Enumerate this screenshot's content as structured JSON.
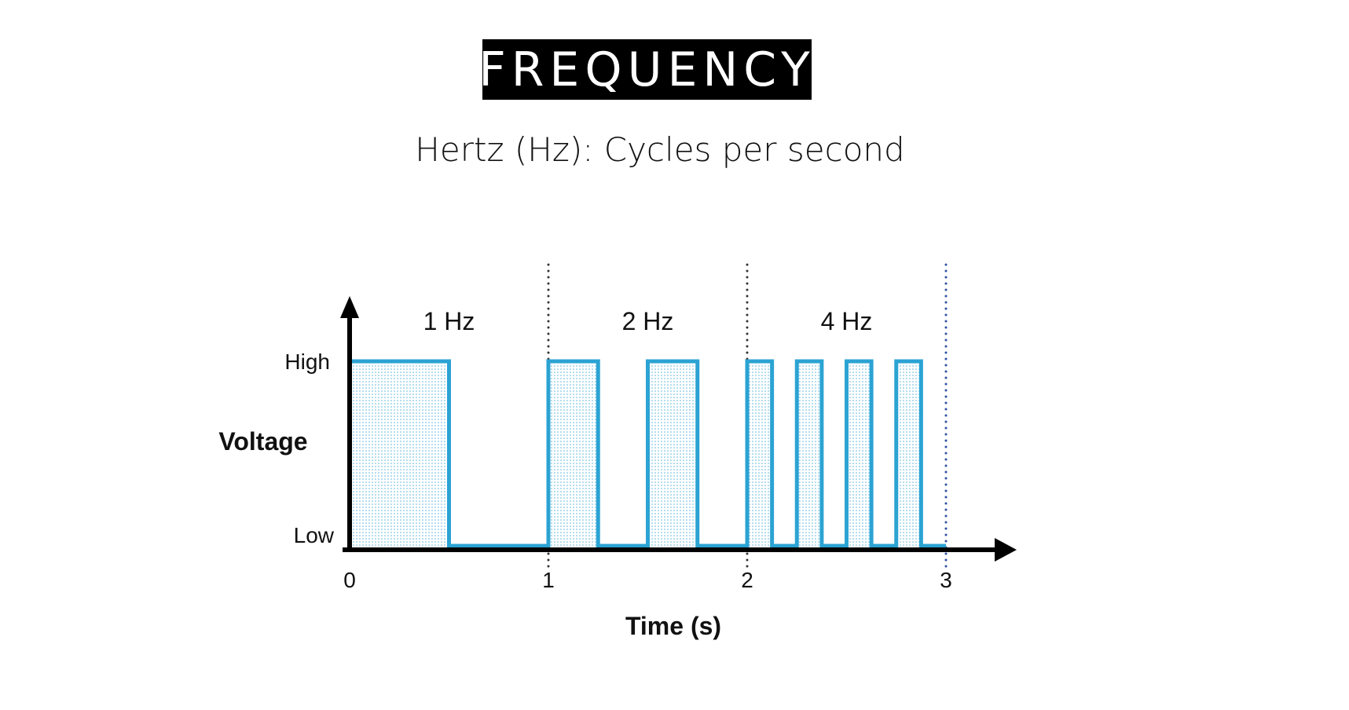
{
  "title": "FREQUENCY",
  "subtitle": "Hertz (Hz): Cycles per second",
  "chart_data": {
    "type": "line",
    "xlabel": "Time (s)",
    "ylabel": "Voltage",
    "y_tick_labels": [
      "Low",
      "High"
    ],
    "x_ticks": [
      "0",
      "1",
      "2",
      "3"
    ],
    "xlim": [
      0,
      3
    ],
    "segment_labels": [
      "1 Hz",
      "2 Hz",
      "4 Hz"
    ],
    "dividers": [
      1,
      2,
      3
    ],
    "high_intervals": [
      [
        0,
        0.5
      ],
      [
        1,
        1.25
      ],
      [
        1.5,
        1.75
      ],
      [
        2,
        2.125
      ],
      [
        2.25,
        2.375
      ],
      [
        2.5,
        2.625
      ],
      [
        2.75,
        2.875
      ]
    ],
    "colors": {
      "wave": "#2ba3d3",
      "axis": "#000000",
      "divider": "#333333",
      "last_divider": "#2f4fa0"
    }
  }
}
